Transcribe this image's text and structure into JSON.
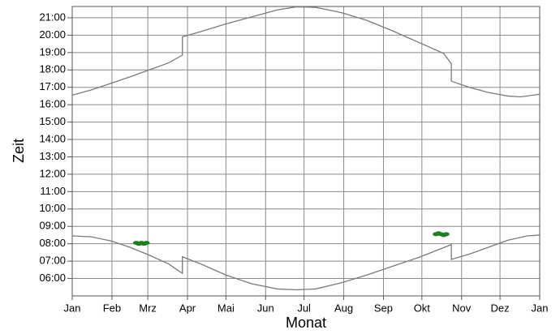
{
  "chart_data": {
    "type": "line",
    "xlabel": "Monat",
    "ylabel": "Zeit",
    "xlim": [
      0,
      365
    ],
    "ylim": [
      5.0,
      21.65
    ],
    "xticks": [
      {
        "value": 0,
        "label": "Jan"
      },
      {
        "value": 31,
        "label": "Feb"
      },
      {
        "value": 59,
        "label": "Mrz"
      },
      {
        "value": 90,
        "label": "Apr"
      },
      {
        "value": 120,
        "label": "Mai"
      },
      {
        "value": 151,
        "label": "Jun"
      },
      {
        "value": 181,
        "label": "Jul"
      },
      {
        "value": 212,
        "label": "Aug"
      },
      {
        "value": 243,
        "label": "Sep"
      },
      {
        "value": 273,
        "label": "Okt"
      },
      {
        "value": 304,
        "label": "Nov"
      },
      {
        "value": 334,
        "label": "Dez"
      },
      {
        "value": 365,
        "label": "Jan"
      }
    ],
    "yticks": [
      {
        "value": 6,
        "label": "06:00"
      },
      {
        "value": 7,
        "label": "07:00"
      },
      {
        "value": 8,
        "label": "08:00"
      },
      {
        "value": 9,
        "label": "09:00"
      },
      {
        "value": 10,
        "label": "10:00"
      },
      {
        "value": 11,
        "label": "11:00"
      },
      {
        "value": 12,
        "label": "12:00"
      },
      {
        "value": 13,
        "label": "13:00"
      },
      {
        "value": 14,
        "label": "14:00"
      },
      {
        "value": 15,
        "label": "15:00"
      },
      {
        "value": 16,
        "label": "16:00"
      },
      {
        "value": 17,
        "label": "17:00"
      },
      {
        "value": 18,
        "label": "18:00"
      },
      {
        "value": 19,
        "label": "19:00"
      },
      {
        "value": 20,
        "label": "20:00"
      },
      {
        "value": 21,
        "label": "21:00"
      }
    ],
    "grid": true,
    "series": [
      {
        "type": "line",
        "color": "#7a7a7a",
        "x": [
          0,
          15,
          31,
          45,
          60,
          75,
          86,
          86,
          100,
          120,
          140,
          160,
          175,
          190,
          210,
          230,
          250,
          270,
          290,
          296,
          296,
          310,
          325,
          340,
          350,
          365
        ],
        "values": [
          16.55,
          16.85,
          17.25,
          17.6,
          18.0,
          18.4,
          18.85,
          19.9,
          20.2,
          20.65,
          21.05,
          21.45,
          21.63,
          21.6,
          21.3,
          20.85,
          20.25,
          19.6,
          18.95,
          18.35,
          17.35,
          17.0,
          16.7,
          16.5,
          16.45,
          16.6
        ]
      },
      {
        "type": "line",
        "color": "#7a7a7a",
        "x": [
          0,
          15,
          31,
          45,
          60,
          75,
          86,
          86,
          100,
          120,
          140,
          160,
          175,
          190,
          210,
          230,
          250,
          270,
          296,
          296,
          310,
          325,
          340,
          355,
          365
        ],
        "values": [
          8.45,
          8.4,
          8.15,
          7.8,
          7.35,
          6.85,
          6.3,
          7.25,
          6.85,
          6.2,
          5.7,
          5.4,
          5.35,
          5.4,
          5.75,
          6.2,
          6.7,
          7.2,
          7.95,
          7.1,
          7.4,
          7.8,
          8.2,
          8.45,
          8.5
        ]
      },
      {
        "type": "scatter",
        "color": "#1e7f1e",
        "x": [
          50,
          52,
          54,
          56,
          58,
          284,
          286,
          288,
          290,
          292
        ],
        "values": [
          8.05,
          8.0,
          8.05,
          8.0,
          8.05,
          8.55,
          8.6,
          8.55,
          8.5,
          8.55
        ]
      }
    ]
  }
}
